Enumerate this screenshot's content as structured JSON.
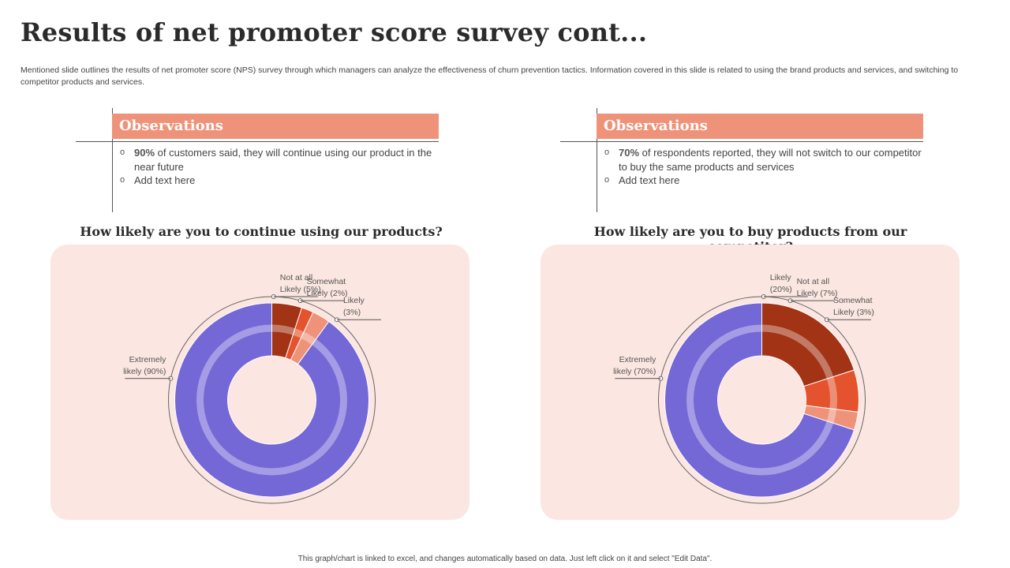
{
  "title": "Results of net promoter score survey cont...",
  "subtitle": "Mentioned slide outlines the results of net promoter score (NPS) survey through which managers can analyze the effectiveness of churn prevention tactics. Information covered in this slide is related to using the brand products and services, and switching to competitor products and services.",
  "footer": "This graph/chart is linked to excel, and changes automatically based on data. Just left click on it and select \"Edit Data\".",
  "colors": {
    "accent_bar": "#7467d6",
    "observations_header": "#ee937a",
    "panel_bg": "#fbe6e1"
  },
  "observations": [
    {
      "header": "Observations",
      "bullet_icon": "hollow-circle",
      "items": [
        {
          "bold": "90%",
          "text": " of customers said, they will continue using our product in the near future"
        },
        {
          "bold": "",
          "text": "Add text here"
        }
      ]
    },
    {
      "header": "Observations",
      "bullet_icon": "hollow-circle",
      "items": [
        {
          "bold": "70%",
          "text": " of respondents reported, they will not switch to our competitor to buy the same products and services"
        },
        {
          "bold": "",
          "text": "Add text here"
        }
      ]
    }
  ],
  "chart_data": [
    {
      "type": "pie",
      "donut": true,
      "title": "How likely are you to continue using our products?",
      "series": [
        {
          "name": "Not at all Likely",
          "label_lines": [
            "Not at all",
            "Likely (5%)"
          ],
          "value": 5,
          "color": "#a23315"
        },
        {
          "name": "Somewhat Likely",
          "label_lines": [
            "Somewhat",
            "Likely (2%)"
          ],
          "value": 2,
          "color": "#e4532d"
        },
        {
          "name": "Likely",
          "label_lines": [
            "Likely",
            "(3%)"
          ],
          "value": 3,
          "color": "#ee937a"
        },
        {
          "name": "Extremely likely",
          "label_lines": [
            "Extremely",
            "likely (90%)"
          ],
          "value": 90,
          "color": "#7467d6"
        }
      ]
    },
    {
      "type": "pie",
      "donut": true,
      "title": "How likely are you to buy products from our competitor?",
      "series": [
        {
          "name": "Likely",
          "label_lines": [
            "Likely",
            "(20%)"
          ],
          "value": 20,
          "color": "#a23315"
        },
        {
          "name": "Not at all Likely",
          "label_lines": [
            "Not at all",
            "Likely (7%)"
          ],
          "value": 7,
          "color": "#e4532d"
        },
        {
          "name": "Somewhat Likely",
          "label_lines": [
            "Somewhat",
            "Likely (3%)"
          ],
          "value": 3,
          "color": "#ee937a"
        },
        {
          "name": "Extremely likely",
          "label_lines": [
            "Extremely",
            "likely (70%)"
          ],
          "value": 70,
          "color": "#7467d6"
        }
      ]
    }
  ]
}
